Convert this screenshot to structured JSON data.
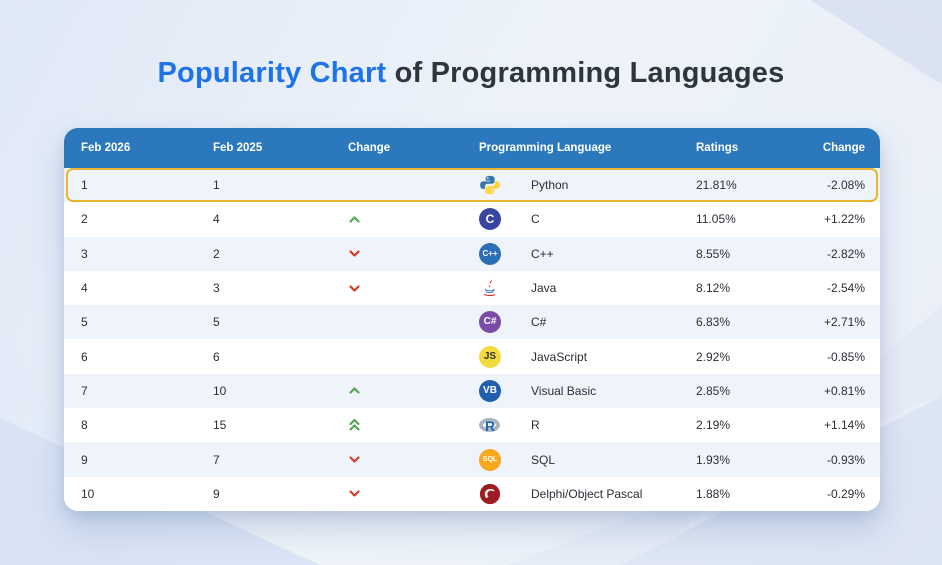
{
  "title": {
    "highlight": "Popularity Chart",
    "rest": " of Programming Languages"
  },
  "colors": {
    "header_bg": "#2B79BC",
    "row_alt": "#EFF4FA",
    "highlight_border": "#E9B52F",
    "up": "#53A551",
    "down": "#D93A2B",
    "title_accent": "#1E73E8",
    "title_dark": "#2F353C"
  },
  "table": {
    "headers": {
      "rank_now": "Feb 2026",
      "rank_prev": "Feb 2025",
      "change_pos": "Change",
      "language": "Programming Language",
      "ratings": "Ratings",
      "change_pct": "Change"
    },
    "rows": [
      {
        "rank_now": "1",
        "rank_prev": "1",
        "trend": "none",
        "language": "Python",
        "icon": {
          "name": "python-icon",
          "type": "python"
        },
        "ratings": "21.81%",
        "change": "-2.08%",
        "highlighted": true
      },
      {
        "rank_now": "2",
        "rank_prev": "4",
        "trend": "up",
        "language": "C",
        "icon": {
          "name": "c-icon",
          "type": "badge",
          "bg": "#3A45A2",
          "fg": "#FFFFFF",
          "label": "C",
          "font": 12
        },
        "ratings": "11.05%",
        "change": "+1.22%",
        "highlighted": false
      },
      {
        "rank_now": "3",
        "rank_prev": "2",
        "trend": "down",
        "language": "C++",
        "icon": {
          "name": "cpp-icon",
          "type": "badge",
          "bg": "#2D6FB7",
          "fg": "#FFFFFF",
          "label": "C++",
          "font": 8
        },
        "ratings": "8.55%",
        "change": "-2.82%",
        "highlighted": false
      },
      {
        "rank_now": "4",
        "rank_prev": "3",
        "trend": "down",
        "language": "Java",
        "icon": {
          "name": "java-icon",
          "type": "java"
        },
        "ratings": "8.12%",
        "change": "-2.54%",
        "highlighted": false
      },
      {
        "rank_now": "5",
        "rank_prev": "5",
        "trend": "none",
        "language": "C#",
        "icon": {
          "name": "csharp-icon",
          "type": "badge",
          "bg": "#7B4BA8",
          "fg": "#FFFFFF",
          "label": "C#",
          "font": 10
        },
        "ratings": "6.83%",
        "change": "+2.71%",
        "highlighted": false
      },
      {
        "rank_now": "6",
        "rank_prev": "6",
        "trend": "none",
        "language": "JavaScript",
        "icon": {
          "name": "js-icon",
          "type": "badge",
          "bg": "#F2DB3E",
          "fg": "#2F3338",
          "label": "JS",
          "font": 10
        },
        "ratings": "2.92%",
        "change": "-0.85%",
        "highlighted": false
      },
      {
        "rank_now": "7",
        "rank_prev": "10",
        "trend": "up",
        "language": "Visual Basic",
        "icon": {
          "name": "vb-icon",
          "type": "badge",
          "bg": "#1F5FAE",
          "fg": "#FFFFFF",
          "label": "VB",
          "font": 10
        },
        "ratings": "2.85%",
        "change": "+0.81%",
        "highlighted": false
      },
      {
        "rank_now": "8",
        "rank_prev": "15",
        "trend": "up2",
        "language": "R",
        "icon": {
          "name": "r-icon",
          "type": "r"
        },
        "ratings": "2.19%",
        "change": "+1.14%",
        "highlighted": false
      },
      {
        "rank_now": "9",
        "rank_prev": "7",
        "trend": "down",
        "language": "SQL",
        "icon": {
          "name": "sql-icon",
          "type": "badge",
          "bg": "#F5A81C",
          "fg": "#FFFFFF",
          "label": "SQL",
          "font": 7
        },
        "ratings": "1.93%",
        "change": "-0.93%",
        "highlighted": false
      },
      {
        "rank_now": "10",
        "rank_prev": "9",
        "trend": "down",
        "language": "Delphi/Object Pascal",
        "icon": {
          "name": "delphi-icon",
          "type": "delphi"
        },
        "ratings": "1.88%",
        "change": "-0.29%",
        "highlighted": false
      }
    ]
  },
  "chart_data": {
    "type": "table",
    "title": "Popularity Chart of Programming Languages",
    "columns": [
      "Feb 2026",
      "Feb 2025",
      "Change",
      "Programming Language",
      "Ratings",
      "Change"
    ],
    "rows": [
      [
        "1",
        "1",
        "",
        "Python",
        "21.81%",
        "-2.08%"
      ],
      [
        "2",
        "4",
        "up",
        "C",
        "11.05%",
        "+1.22%"
      ],
      [
        "3",
        "2",
        "down",
        "C++",
        "8.55%",
        "-2.82%"
      ],
      [
        "4",
        "3",
        "down",
        "Java",
        "8.12%",
        "-2.54%"
      ],
      [
        "5",
        "5",
        "",
        "C#",
        "6.83%",
        "+2.71%"
      ],
      [
        "6",
        "6",
        "",
        "JavaScript",
        "2.92%",
        "-0.85%"
      ],
      [
        "7",
        "10",
        "up",
        "Visual Basic",
        "2.85%",
        "+0.81%"
      ],
      [
        "8",
        "15",
        "up-double",
        "R",
        "2.19%",
        "+1.14%"
      ],
      [
        "9",
        "7",
        "down",
        "SQL",
        "1.93%",
        "-0.93%"
      ],
      [
        "10",
        "9",
        "down",
        "Delphi/Object Pascal",
        "1.88%",
        "-0.29%"
      ]
    ]
  }
}
